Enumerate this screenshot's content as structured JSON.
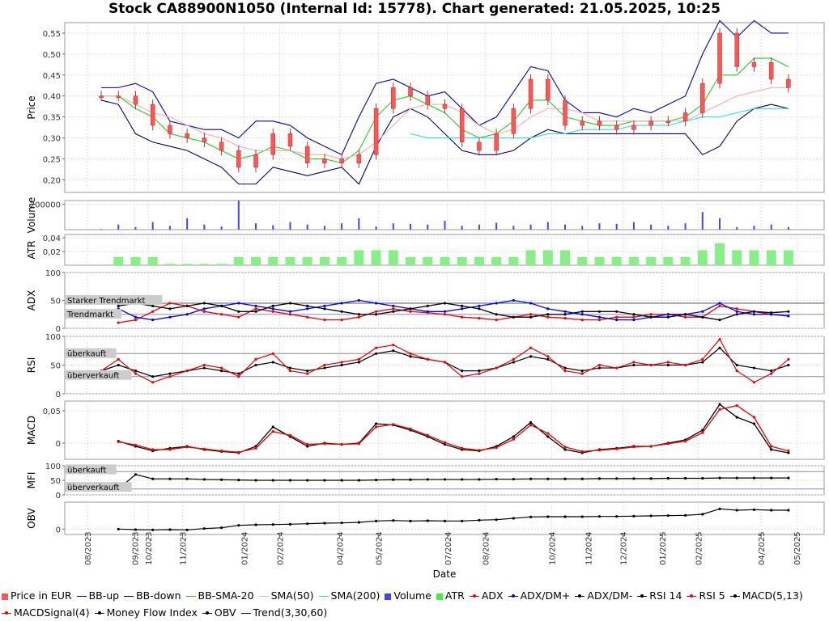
{
  "title": "Stock CA88900N1050 (Internal Id: 15778). Chart generated: 21.05.2025, 10:25",
  "xlabel": "Date",
  "x_ticks": [
    "08/2023",
    "09/2023",
    "10/2023",
    "11/2023",
    "01/2024",
    "02/2024",
    "04/2024",
    "05/2024",
    "07/2024",
    "08/2024",
    "10/2024",
    "11/2024",
    "12/2024",
    "01/2025",
    "02/2025",
    "04/2025",
    "05/2025"
  ],
  "panel_labels": {
    "price": "Price",
    "volume": "Volume",
    "atr": "ATR",
    "adx": "ADX",
    "rsi": "RSI",
    "macd": "MACD",
    "mfi": "MFI",
    "obv": "OBV"
  },
  "annotations": {
    "adx_strong": "Starker Trendmarkt",
    "adx_trend": "Trendmarkt",
    "rsi_over": "überkauft",
    "rsi_under": "überverkauft",
    "mfi_over": "überkauft",
    "mfi_under": "überverkauft"
  },
  "legend": [
    {
      "label": "Price in EUR",
      "color": "#ff5555",
      "kind": "box"
    },
    {
      "label": "BB-up",
      "color": "#0000cc",
      "kind": "line"
    },
    {
      "label": "BB-down",
      "color": "#000080",
      "kind": "line"
    },
    {
      "label": "BB-SMA-20",
      "color": "#22cc22",
      "kind": "line"
    },
    {
      "label": "SMA(50)",
      "color": "#ffaaaa",
      "kind": "line"
    },
    {
      "label": "SMA(200)",
      "color": "#33dddd",
      "kind": "line"
    },
    {
      "label": "Volume",
      "color": "#4444ff",
      "kind": "box"
    },
    {
      "label": "ATR",
      "color": "#44ee44",
      "kind": "box"
    },
    {
      "label": "ADX",
      "color": "#ee0000",
      "kind": "dotline"
    },
    {
      "label": "ADX/DM+",
      "color": "#0000ee",
      "kind": "dotline"
    },
    {
      "label": "ADX/DM-",
      "color": "#000000",
      "kind": "dotline"
    },
    {
      "label": "RSI 14",
      "color": "#000000",
      "kind": "dotline"
    },
    {
      "label": "RSI 5",
      "color": "#ee0000",
      "kind": "dotline"
    },
    {
      "label": "MACD(5,13)",
      "color": "#000000",
      "kind": "dotline"
    },
    {
      "label": "MACDSignal(4)",
      "color": "#ee0000",
      "kind": "dotline"
    },
    {
      "label": "Money Flow Index",
      "color": "#000000",
      "kind": "dotline"
    },
    {
      "label": "OBV",
      "color": "#000000",
      "kind": "dotline"
    },
    {
      "label": "Trend(3,30,60)",
      "color": "#000000",
      "kind": "line"
    }
  ],
  "chart_data": [
    {
      "type": "line",
      "panel": "price",
      "ylabel": "Price",
      "y_ticks": [
        "0,20",
        "0,25",
        "0,30",
        "0,35",
        "0,40",
        "0,45",
        "0,50",
        "0,55"
      ],
      "ylim": [
        0.17,
        0.575
      ],
      "x": [
        "2023-08-28",
        "2023-09-15",
        "2023-10-01",
        "2023-10-15",
        "2023-11-01",
        "2023-11-20",
        "2023-12-10",
        "2024-01-01",
        "2024-01-15",
        "2024-02-01",
        "2024-02-15",
        "2024-03-01",
        "2024-03-20",
        "2024-04-05",
        "2024-04-20",
        "2024-05-05",
        "2024-05-20",
        "2024-06-05",
        "2024-06-25",
        "2024-07-10",
        "2024-07-25",
        "2024-08-10",
        "2024-08-25",
        "2024-09-10",
        "2024-09-25",
        "2024-10-10",
        "2024-10-25",
        "2024-11-10",
        "2024-11-25",
        "2024-12-10",
        "2024-12-25",
        "2025-01-10",
        "2025-01-25",
        "2025-02-10",
        "2025-02-25",
        "2025-03-10",
        "2025-03-20",
        "2025-04-01",
        "2025-04-15",
        "2025-05-01",
        "2025-05-10"
      ],
      "series": [
        {
          "name": "Price in EUR",
          "values": [
            0.4,
            0.4,
            0.38,
            0.33,
            0.31,
            0.3,
            0.29,
            0.27,
            0.23,
            0.26,
            0.31,
            0.28,
            0.24,
            0.25,
            0.24,
            0.26,
            0.37,
            0.42,
            0.4,
            0.38,
            0.37,
            0.29,
            0.27,
            0.31,
            0.37,
            0.44,
            0.39,
            0.33,
            0.34,
            0.33,
            0.32,
            0.33,
            0.34,
            0.34,
            0.36,
            0.43,
            0.55,
            0.47,
            0.48,
            0.44,
            0.42
          ]
        },
        {
          "name": "BB-up",
          "values": [
            0.42,
            0.42,
            0.43,
            0.41,
            0.34,
            0.33,
            0.32,
            0.32,
            0.3,
            0.34,
            0.34,
            0.33,
            0.3,
            0.28,
            0.26,
            0.35,
            0.43,
            0.44,
            0.42,
            0.4,
            0.41,
            0.37,
            0.33,
            0.35,
            0.41,
            0.47,
            0.46,
            0.39,
            0.36,
            0.36,
            0.35,
            0.37,
            0.36,
            0.38,
            0.4,
            0.5,
            0.58,
            0.54,
            0.58,
            0.55,
            0.55
          ]
        },
        {
          "name": "BB-down",
          "values": [
            0.39,
            0.38,
            0.31,
            0.29,
            0.28,
            0.27,
            0.25,
            0.23,
            0.19,
            0.19,
            0.23,
            0.22,
            0.21,
            0.22,
            0.23,
            0.19,
            0.28,
            0.35,
            0.37,
            0.35,
            0.31,
            0.27,
            0.26,
            0.26,
            0.27,
            0.3,
            0.32,
            0.31,
            0.31,
            0.31,
            0.31,
            0.31,
            0.31,
            0.31,
            0.31,
            0.26,
            0.28,
            0.34,
            0.37,
            0.38,
            0.37
          ]
        },
        {
          "name": "BB-SMA-20",
          "values": [
            0.4,
            0.4,
            0.37,
            0.35,
            0.31,
            0.3,
            0.29,
            0.27,
            0.25,
            0.26,
            0.28,
            0.27,
            0.25,
            0.25,
            0.24,
            0.27,
            0.35,
            0.39,
            0.4,
            0.38,
            0.36,
            0.32,
            0.3,
            0.31,
            0.34,
            0.39,
            0.39,
            0.35,
            0.34,
            0.33,
            0.33,
            0.34,
            0.34,
            0.34,
            0.35,
            0.38,
            0.45,
            0.45,
            0.49,
            0.49,
            0.47
          ]
        },
        {
          "name": "SMA(50)",
          "values": [
            0.4,
            0.4,
            0.38,
            0.36,
            0.35,
            0.33,
            0.31,
            0.3,
            0.28,
            0.27,
            0.27,
            0.27,
            0.26,
            0.26,
            0.25,
            0.26,
            0.29,
            0.33,
            0.37,
            0.38,
            0.38,
            0.36,
            0.33,
            0.31,
            0.32,
            0.35,
            0.37,
            0.37,
            0.36,
            0.34,
            0.34,
            0.34,
            0.34,
            0.34,
            0.34,
            0.36,
            0.38,
            0.4,
            0.41,
            0.42,
            0.42
          ]
        },
        {
          "name": "SMA(200)",
          "values": [
            null,
            null,
            null,
            null,
            null,
            null,
            null,
            null,
            null,
            null,
            null,
            null,
            null,
            null,
            null,
            null,
            null,
            null,
            0.31,
            0.3,
            0.3,
            0.3,
            0.3,
            0.3,
            0.3,
            0.3,
            0.31,
            0.31,
            0.32,
            0.32,
            0.32,
            0.33,
            0.33,
            0.33,
            0.34,
            0.35,
            0.35,
            0.36,
            0.37,
            0.37,
            0.37
          ]
        }
      ]
    },
    {
      "type": "bar",
      "panel": "volume",
      "ylabel": "Volume",
      "y_ticks": [
        "200000"
      ],
      "ylim": [
        0,
        230000
      ],
      "series": [
        {
          "name": "Volume",
          "values": [
            5000,
            40000,
            20000,
            60000,
            30000,
            90000,
            40000,
            25000,
            230000,
            50000,
            35000,
            60000,
            40000,
            30000,
            50000,
            90000,
            25000,
            50000,
            45000,
            40000,
            70000,
            30000,
            40000,
            55000,
            30000,
            40000,
            60000,
            40000,
            30000,
            50000,
            45000,
            60000,
            40000,
            30000,
            50000,
            140000,
            90000,
            20000,
            30000,
            40000,
            20000
          ]
        }
      ]
    },
    {
      "type": "bar",
      "panel": "atr",
      "ylabel": "ATR",
      "y_ticks": [
        "0,02",
        "0,04"
      ],
      "ylim": [
        0,
        0.045
      ],
      "series": [
        {
          "name": "ATR",
          "values": [
            0,
            0.012,
            0.012,
            0.012,
            0.002,
            0.002,
            0.002,
            0.002,
            0.012,
            0.012,
            0.012,
            0.012,
            0.012,
            0.012,
            0.012,
            0.022,
            0.022,
            0.022,
            0.012,
            0.012,
            0.012,
            0.012,
            0.012,
            0.012,
            0.012,
            0.022,
            0.022,
            0.022,
            0.012,
            0.012,
            0.012,
            0.012,
            0.012,
            0.012,
            0.012,
            0.022,
            0.032,
            0.022,
            0.022,
            0.022,
            0.022
          ]
        }
      ]
    },
    {
      "type": "line",
      "panel": "adx",
      "ylabel": "ADX",
      "y_ticks": [
        "0",
        "50",
        "100"
      ],
      "ylim": [
        0,
        100
      ],
      "series": [
        {
          "name": "ADX",
          "values": [
            null,
            10,
            15,
            30,
            45,
            40,
            30,
            25,
            20,
            35,
            30,
            25,
            20,
            15,
            15,
            20,
            30,
            35,
            30,
            28,
            25,
            20,
            18,
            15,
            20,
            25,
            20,
            18,
            15,
            15,
            20,
            20,
            25,
            25,
            20,
            20,
            40,
            35,
            30,
            25,
            22
          ]
        },
        {
          "name": "ADX/DM+",
          "values": [
            null,
            35,
            20,
            15,
            20,
            25,
            35,
            40,
            45,
            40,
            35,
            30,
            35,
            40,
            45,
            50,
            45,
            40,
            35,
            30,
            30,
            35,
            40,
            45,
            50,
            45,
            35,
            30,
            25,
            20,
            15,
            15,
            20,
            25,
            25,
            30,
            45,
            30,
            25,
            25,
            22
          ]
        },
        {
          "name": "ADX/DM-",
          "values": [
            null,
            40,
            45,
            40,
            35,
            40,
            45,
            40,
            30,
            30,
            40,
            45,
            40,
            35,
            30,
            25,
            25,
            30,
            35,
            40,
            45,
            40,
            35,
            25,
            20,
            20,
            25,
            25,
            30,
            30,
            30,
            25,
            20,
            20,
            25,
            20,
            15,
            25,
            30,
            28,
            30
          ]
        }
      ]
    },
    {
      "type": "line",
      "panel": "rsi",
      "ylabel": "RSI",
      "y_ticks": [
        "0",
        "50",
        "100"
      ],
      "ylim": [
        0,
        100
      ],
      "series": [
        {
          "name": "RSI 14",
          "values": [
            40,
            50,
            40,
            30,
            35,
            40,
            45,
            40,
            35,
            50,
            55,
            45,
            40,
            45,
            50,
            55,
            70,
            75,
            65,
            60,
            55,
            40,
            40,
            45,
            55,
            65,
            60,
            45,
            40,
            45,
            45,
            50,
            50,
            50,
            50,
            55,
            80,
            50,
            45,
            40,
            50
          ]
        },
        {
          "name": "RSI 5",
          "values": [
            40,
            60,
            35,
            20,
            30,
            40,
            50,
            45,
            30,
            60,
            70,
            40,
            35,
            50,
            55,
            60,
            80,
            85,
            70,
            60,
            55,
            30,
            35,
            45,
            60,
            80,
            65,
            40,
            35,
            50,
            45,
            55,
            50,
            55,
            50,
            60,
            95,
            40,
            20,
            35,
            60
          ]
        }
      ]
    },
    {
      "type": "line",
      "panel": "macd",
      "ylabel": "MACD",
      "y_ticks": [
        "0",
        "0,05"
      ],
      "ylim": [
        -0.025,
        0.065
      ],
      "series": [
        {
          "name": "MACD(5,13)",
          "values": [
            null,
            0.003,
            -0.005,
            -0.012,
            -0.008,
            -0.005,
            -0.01,
            -0.013,
            -0.015,
            -0.005,
            0.025,
            0.01,
            -0.005,
            0.0,
            -0.002,
            0.0,
            0.03,
            0.028,
            0.02,
            0.01,
            -0.002,
            -0.01,
            -0.012,
            -0.005,
            0.01,
            0.032,
            0.01,
            -0.01,
            -0.015,
            -0.01,
            -0.008,
            -0.005,
            -0.005,
            0.0,
            0.005,
            0.02,
            0.06,
            0.04,
            0.03,
            -0.01,
            -0.015
          ]
        },
        {
          "name": "MACDSignal(4)",
          "values": [
            null,
            0.002,
            -0.003,
            -0.01,
            -0.01,
            -0.006,
            -0.009,
            -0.012,
            -0.014,
            -0.008,
            0.018,
            0.012,
            -0.002,
            -0.001,
            -0.002,
            -0.001,
            0.025,
            0.029,
            0.022,
            0.012,
            0.001,
            -0.008,
            -0.011,
            -0.007,
            0.006,
            0.028,
            0.015,
            -0.006,
            -0.013,
            -0.011,
            -0.009,
            -0.006,
            -0.005,
            -0.001,
            0.003,
            0.016,
            0.052,
            0.058,
            0.04,
            -0.005,
            -0.012
          ]
        }
      ]
    },
    {
      "type": "line",
      "panel": "mfi",
      "ylabel": "MFI",
      "y_ticks": [
        "0",
        "50",
        "100"
      ],
      "ylim": [
        0,
        100
      ],
      "series": [
        {
          "name": "Money Flow Index",
          "values": [
            null,
            20,
            70,
            55,
            55,
            55,
            53,
            52,
            51,
            50,
            50,
            50,
            50,
            50,
            50,
            50,
            51,
            52,
            52,
            53,
            53,
            53,
            53,
            54,
            54,
            55,
            55,
            55,
            55,
            56,
            56,
            56,
            56,
            57,
            57,
            57,
            58,
            58,
            58,
            58,
            58
          ]
        }
      ]
    },
    {
      "type": "line",
      "panel": "obv",
      "ylabel": "OBV",
      "y_ticks": [
        "0"
      ],
      "ylim": [
        -0.2,
        1.0
      ],
      "series": [
        {
          "name": "OBV",
          "values": [
            null,
            0.0,
            -0.02,
            -0.03,
            -0.02,
            -0.03,
            0.02,
            0.05,
            0.14,
            0.16,
            0.17,
            0.18,
            0.2,
            0.22,
            0.23,
            0.25,
            0.3,
            0.32,
            0.3,
            0.31,
            0.3,
            0.3,
            0.33,
            0.35,
            0.4,
            0.45,
            0.46,
            0.46,
            0.46,
            0.47,
            0.47,
            0.48,
            0.49,
            0.5,
            0.51,
            0.55,
            0.75,
            0.7,
            0.72,
            0.7,
            0.7
          ]
        }
      ]
    }
  ]
}
